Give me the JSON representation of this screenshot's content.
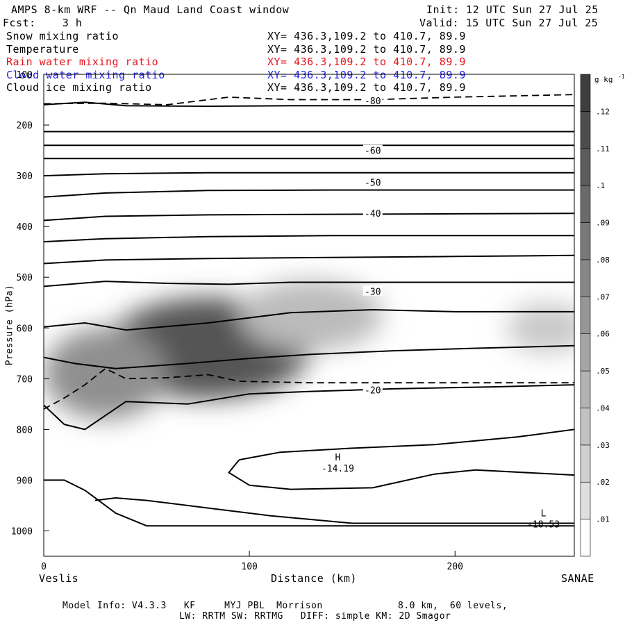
{
  "header": {
    "title": "AMPS 8-km WRF -- Qn Maud Land Coast window",
    "init": "Init: 12 UTC Sun 27 Jul 25",
    "fcst": "Fcst:    3 h",
    "valid": "Valid: 15 UTC Sun 27 Jul 25"
  },
  "fields": [
    {
      "name": "Snow mixing ratio",
      "xy": "XY= 436.3,109.2 to 410.7, 89.9",
      "color": "#000000"
    },
    {
      "name": "Temperature",
      "xy": "XY= 436.3,109.2 to 410.7, 89.9",
      "color": "#000000"
    },
    {
      "name": "Rain water mixing ratio",
      "xy": "XY= 436.3,109.2 to 410.7, 89.9",
      "color": "#e8141e"
    },
    {
      "name": "Cloud water mixing ratio",
      "xy": "XY= 436.3,109.2 to 410.7, 89.9",
      "color": "#1e1ee6"
    },
    {
      "name": "Cloud ice mixing ratio",
      "xy": "XY= 436.3,109.2 to 410.7, 89.9",
      "color": "#000000"
    }
  ],
  "footer": {
    "line1": "Model Info: V4.3.3   KF     MYJ PBL  Morrison             8.0 km,  60 levels,",
    "line2": "LW: RRTM SW: RRTMG   DIFF: simple KM: 2D Smagor"
  },
  "chart_data": {
    "type": "cross-section contour",
    "xlabel": "Distance (km)",
    "ylabel": "Pressure (hPa)",
    "xlim": [
      0,
      258
    ],
    "ylim": [
      1050,
      100
    ],
    "x_ticks": [
      "0",
      "100",
      "200"
    ],
    "x_tick_values": [
      0,
      100,
      200
    ],
    "y_ticks": [
      "100",
      "200",
      "300",
      "400",
      "500",
      "600",
      "700",
      "800",
      "900",
      "1000"
    ],
    "y_tick_values": [
      100,
      200,
      300,
      400,
      500,
      600,
      700,
      800,
      900,
      1000
    ],
    "left_endpoint": "Veslis",
    "right_endpoint": "SANAE",
    "colorbar": {
      "unit": "g kg",
      "unit_exp": "-1",
      "labels": [
        ".01",
        ".02",
        ".03",
        ".04",
        ".05",
        ".06",
        ".07",
        ".08",
        ".09",
        ".1",
        ".11",
        ".12"
      ],
      "values": [
        0.01,
        0.02,
        0.03,
        0.04,
        0.05,
        0.06,
        0.07,
        0.08,
        0.09,
        0.1,
        0.11,
        0.12
      ]
    },
    "temperature_labels": [
      {
        "label": "-80",
        "x": 160,
        "p": 152
      },
      {
        "label": "-60",
        "x": 160,
        "p": 250
      },
      {
        "label": "-50",
        "x": 160,
        "p": 313
      },
      {
        "label": "-40",
        "x": 160,
        "p": 374
      },
      {
        "label": "-30",
        "x": 160,
        "p": 528
      },
      {
        "label": "-20",
        "x": 160,
        "p": 722
      }
    ],
    "extrema": [
      {
        "type": "H",
        "value": "-14.19",
        "x": 143,
        "p": 875
      },
      {
        "type": "L",
        "value": "-18.53",
        "x": 243,
        "p": 985
      }
    ],
    "temperature_lines": [
      {
        "x": [
          0,
          20,
          40,
          80,
          120,
          160,
          200,
          258
        ],
        "p": [
          160,
          155,
          162,
          163,
          162,
          162,
          162,
          162
        ]
      },
      {
        "x": [
          0,
          258
        ],
        "p": [
          213,
          213
        ]
      },
      {
        "x": [
          0,
          258
        ],
        "p": [
          240,
          240
        ]
      },
      {
        "x": [
          0,
          258
        ],
        "p": [
          266,
          266
        ]
      },
      {
        "x": [
          0,
          30,
          80,
          140,
          200,
          258
        ],
        "p": [
          300,
          296,
          294,
          294,
          294,
          294
        ]
      },
      {
        "x": [
          0,
          30,
          80,
          140,
          200,
          258
        ],
        "p": [
          342,
          334,
          329,
          328,
          328,
          328
        ]
      },
      {
        "x": [
          0,
          30,
          80,
          140,
          200,
          258
        ],
        "p": [
          388,
          380,
          377,
          376,
          375,
          374
        ]
      },
      {
        "x": [
          0,
          30,
          80,
          140,
          200,
          258
        ],
        "p": [
          430,
          424,
          420,
          418,
          418,
          418
        ]
      },
      {
        "x": [
          0,
          30,
          80,
          140,
          200,
          258
        ],
        "p": [
          473,
          466,
          463,
          461,
          459,
          457
        ]
      },
      {
        "x": [
          0,
          30,
          60,
          90,
          120,
          160,
          200,
          258
        ],
        "p": [
          518,
          508,
          512,
          514,
          510,
          510,
          510,
          510
        ]
      },
      {
        "x": [
          0,
          20,
          40,
          80,
          120,
          160,
          200,
          258
        ],
        "p": [
          598,
          590,
          604,
          590,
          570,
          564,
          568,
          568
        ]
      },
      {
        "x": [
          0,
          15,
          35,
          70,
          100,
          130,
          170,
          210,
          258
        ],
        "p": [
          658,
          670,
          680,
          670,
          660,
          652,
          645,
          640,
          635
        ]
      },
      {
        "x": [
          0,
          10,
          20,
          40,
          70,
          100,
          130,
          170,
          220,
          258
        ],
        "p": [
          752,
          790,
          800,
          745,
          750,
          730,
          725,
          720,
          716,
          712
        ]
      },
      {
        "x": [
          95,
          115,
          150,
          190,
          230,
          258
        ],
        "p": [
          860,
          845,
          837,
          830,
          815,
          800
        ]
      },
      {
        "x": [
          95,
          90,
          100,
          120,
          160,
          190,
          210,
          258
        ],
        "p": [
          860,
          885,
          910,
          918,
          915,
          888,
          880,
          890
        ]
      },
      {
        "x": [
          0,
          10,
          20,
          35,
          50,
          70,
          90,
          258
        ],
        "p": [
          900,
          900,
          920,
          965,
          990,
          990,
          990,
          990
        ]
      },
      {
        "x": [
          25,
          35,
          50,
          80,
          110,
          150,
          200,
          258
        ],
        "p": [
          940,
          935,
          940,
          955,
          970,
          985,
          985,
          985
        ]
      }
    ],
    "dashed_lines": [
      {
        "x": [
          0,
          30,
          60,
          90,
          120,
          160,
          200,
          258
        ],
        "p": [
          158,
          157,
          160,
          145,
          150,
          150,
          145,
          140
        ]
      },
      {
        "x": [
          0,
          10,
          20,
          30,
          40,
          60,
          80,
          95,
          130,
          180,
          258
        ],
        "p": [
          760,
          738,
          712,
          680,
          700,
          698,
          692,
          705,
          708,
          708,
          708
        ]
      }
    ],
    "shaded_blobs": [
      {
        "x": 80,
        "p": 640,
        "rx": 50,
        "rp": 100,
        "value": 0.11
      },
      {
        "x": 30,
        "p": 690,
        "rx": 30,
        "rp": 90,
        "value": 0.07
      },
      {
        "x": 130,
        "p": 575,
        "rx": 35,
        "rp": 70,
        "value": 0.04
      },
      {
        "x": 245,
        "p": 600,
        "rx": 20,
        "rp": 50,
        "value": 0.03
      }
    ]
  }
}
